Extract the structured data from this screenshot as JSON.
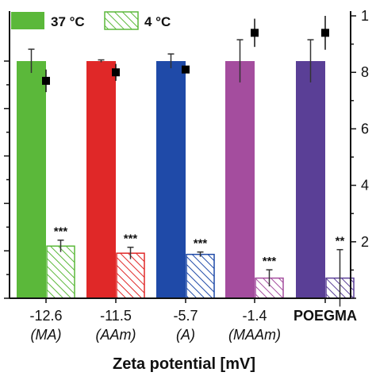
{
  "chart_data": {
    "type": "bar",
    "xlabel": "Zeta potential [mV]",
    "categories": [
      {
        "value": "-12.6",
        "sub": "(MA)"
      },
      {
        "value": "-11.5",
        "sub": "(AAm)"
      },
      {
        "value": "-5.7",
        "sub": "(A)"
      },
      {
        "value": "-1.4",
        "sub": "(MAAm)"
      },
      {
        "value": "POEGMA",
        "sub": ""
      }
    ],
    "left_ylim": [
      0,
      100
    ],
    "right_ylim": [
      0,
      10
    ],
    "right_tick_labels": [
      "2",
      "4",
      "6",
      "8",
      "1"
    ],
    "legend": {
      "placement": "top-left",
      "entries": [
        "37 °C",
        "4 °C"
      ]
    },
    "bar_colors": [
      "#5bb83a",
      "#e02828",
      "#1f4aa8",
      "#a44d9e",
      "#5a3f96"
    ],
    "series": [
      {
        "name": "37 °C",
        "fill": "solid",
        "values": [
          100,
          100,
          100,
          100,
          100
        ],
        "errors": [
          5,
          0.5,
          3,
          9,
          9
        ]
      },
      {
        "name": "4 °C",
        "fill": "hatched",
        "values": [
          22,
          19,
          18.5,
          8.5,
          8.5
        ],
        "errors": [
          2.5,
          2.5,
          1,
          3.5,
          12
        ]
      }
    ],
    "markers": {
      "axis": "right",
      "values": [
        7.7,
        8.0,
        8.1,
        9.4,
        9.4
      ],
      "errors": [
        0.4,
        0.3,
        0,
        0.5,
        0.6
      ]
    },
    "significance": [
      "***",
      "***",
      "***",
      "***",
      "**"
    ],
    "grid": false
  }
}
